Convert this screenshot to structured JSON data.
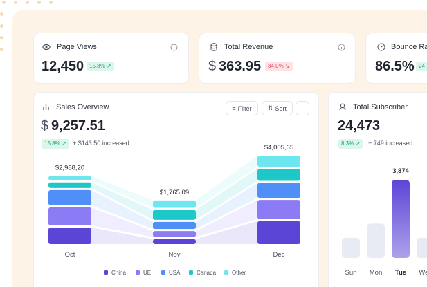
{
  "stat_cards": [
    {
      "title": "Page Views",
      "value": "12,450",
      "badge": "15.8% ↗"
    },
    {
      "title": "Total Revenue",
      "currency": "$",
      "value": "363.95",
      "badge": "34.0% ↘"
    },
    {
      "title": "Bounce Rate",
      "value": "86.5%",
      "badge": "24"
    }
  ],
  "chart_data": [
    {
      "type": "stacked-bar",
      "title": "Sales Overview",
      "currency": "$",
      "total": "9,257.51",
      "badge": "15.8% ↗",
      "change": "+ $143.50 increased",
      "buttons": [
        "Filter",
        "Sort",
        "···"
      ],
      "categories": [
        "Oct",
        "Nov",
        "Dec"
      ],
      "totals": [
        2988.2,
        1765.09,
        4005.65
      ],
      "total_labels": [
        "$2,988,20",
        "$1,765,09",
        "$4,005,65"
      ],
      "series": [
        {
          "name": "China",
          "color": "#5b45d6",
          "values": [
            830,
            250,
            1150
          ]
        },
        {
          "name": "UE",
          "color": "#8b7cf6",
          "values": [
            900,
            300,
            950
          ]
        },
        {
          "name": "USA",
          "color": "#4f8ff7",
          "values": [
            760,
            350,
            750
          ]
        },
        {
          "name": "Canada",
          "color": "#1fc8c8",
          "values": [
            280,
            500,
            600
          ]
        },
        {
          "name": "Other",
          "color": "#6ee6ef",
          "values": [
            218.2,
            365.09,
            555.65
          ]
        }
      ]
    },
    {
      "type": "bar",
      "title": "Total Subscriber",
      "total": "24,473",
      "badge": "8.3% ↗",
      "change": "+ 749 increased",
      "categories": [
        "Sun",
        "Mon",
        "Tue",
        "Wed"
      ],
      "values": [
        1000,
        1700,
        3874,
        1000
      ],
      "value_labels": [
        null,
        null,
        "3,874",
        null
      ],
      "color": "#e8eaf4",
      "highlight": 2,
      "highlight_color": "#5b45d6"
    }
  ]
}
